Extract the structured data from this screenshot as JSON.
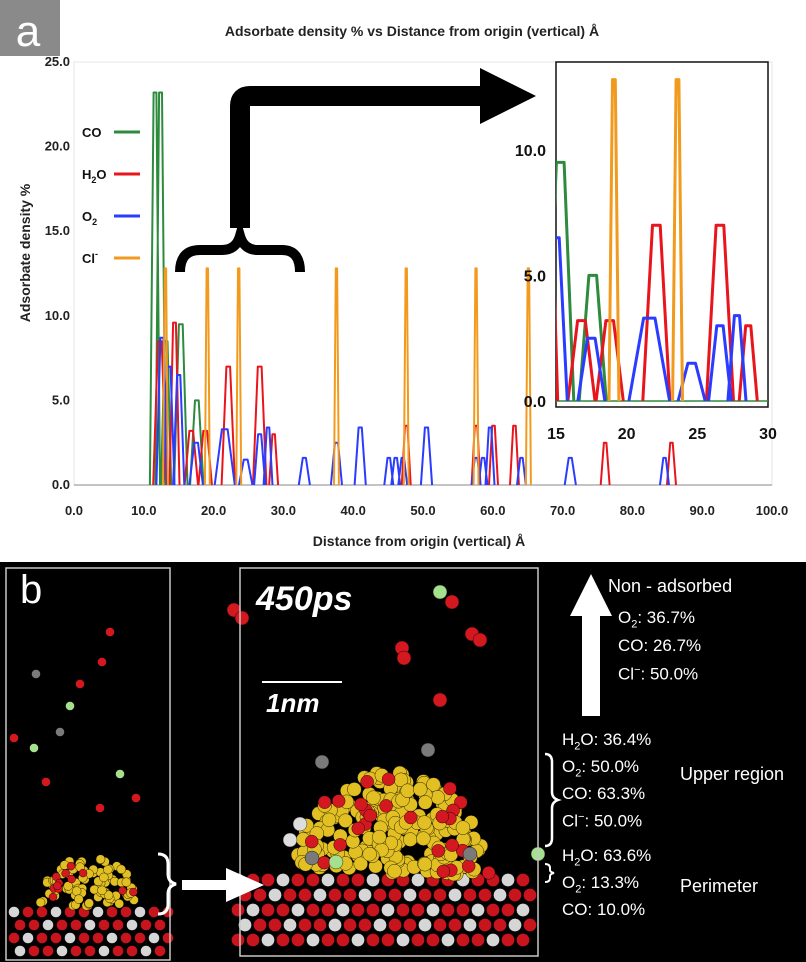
{
  "panel_a": {
    "letter": "a",
    "chart_data": {
      "type": "line",
      "title": "Adsorbate density % vs Distance from origin (vertical) Å",
      "xlabel": "Distance from origin (vertical) Å",
      "ylabel": "Adsorbate density %",
      "xlim": [
        0,
        100
      ],
      "ylim": [
        0,
        25
      ],
      "x_ticks": [
        "0.0",
        "10.0",
        "20.0",
        "30.0",
        "40.0",
        "50.0",
        "60.0",
        "70.0",
        "80.0",
        "90.0",
        "100.0"
      ],
      "y_ticks": [
        "0.0",
        "5.0",
        "10.0",
        "15.0",
        "20.0",
        "25.0"
      ],
      "legend_placement": "top-left",
      "colors": {
        "CO": "#2e8b3e",
        "H2O": "#e8151c",
        "O2": "#2a3cff",
        "Cl": "#f29a1e"
      },
      "series": [
        {
          "name_base": "CO",
          "color_key": "CO",
          "peaks": [
            [
              11.6,
              23.2,
              0.45
            ],
            [
              12.4,
              23.2,
              0.45
            ],
            [
              13.2,
              8.5,
              0.45
            ],
            [
              15.3,
              9.5,
              0.6
            ],
            [
              17.6,
              5.0,
              0.6
            ]
          ]
        },
        {
          "name_base": "H",
          "name_sub": "2",
          "name_tail": "O",
          "color_key": "H2O",
          "peaks": [
            [
              12.3,
              8.5,
              0.6
            ],
            [
              14.4,
              9.6,
              0.45
            ],
            [
              16.8,
              3.2,
              0.6
            ],
            [
              18.8,
              3.2,
              0.6
            ],
            [
              22.1,
              7.0,
              0.6
            ],
            [
              26.6,
              7.0,
              0.6
            ],
            [
              28.6,
              3.0,
              0.4
            ],
            [
              47.6,
              3.5,
              0.4
            ],
            [
              57.6,
              3.5,
              0.4
            ],
            [
              60.1,
              3.5,
              0.4
            ],
            [
              63.1,
              3.5,
              0.4
            ],
            [
              76.1,
              2.5,
              0.4
            ],
            [
              85.6,
              2.5,
              0.4
            ]
          ]
        },
        {
          "name_base": "O",
          "name_sub": "2",
          "color_key": "O2",
          "peaks": [
            [
              12.6,
              8.7,
              0.5
            ],
            [
              13.6,
              7.0,
              0.5
            ],
            [
              15.0,
              6.5,
              0.5
            ],
            [
              17.5,
              2.5,
              0.6
            ],
            [
              21.6,
              3.3,
              0.9
            ],
            [
              24.6,
              1.5,
              0.6
            ],
            [
              26.6,
              3.0,
              0.5
            ],
            [
              27.8,
              3.4,
              0.4
            ],
            [
              33.0,
              1.6,
              0.5
            ],
            [
              37.6,
              2.5,
              0.5
            ],
            [
              41.0,
              3.4,
              0.5
            ],
            [
              45.1,
              1.6,
              0.4
            ],
            [
              46.1,
              1.6,
              0.4
            ],
            [
              47.1,
              1.6,
              0.4
            ],
            [
              50.5,
              3.4,
              0.5
            ],
            [
              57.6,
              1.6,
              0.4
            ],
            [
              58.6,
              1.6,
              0.4
            ],
            [
              59.6,
              3.4,
              0.4
            ],
            [
              64.1,
              1.6,
              0.4
            ],
            [
              71.1,
              1.6,
              0.5
            ],
            [
              84.6,
              1.6,
              0.4
            ]
          ]
        },
        {
          "name_base": "Cl",
          "name_sup": "-",
          "color_key": "Cl",
          "peaks": [
            [
              13.1,
              12.8,
              0.22
            ],
            [
              19.1,
              12.8,
              0.22
            ],
            [
              23.6,
              12.8,
              0.22
            ],
            [
              37.6,
              12.8,
              0.22
            ],
            [
              47.6,
              12.8,
              0.22
            ],
            [
              57.6,
              12.8,
              0.22
            ],
            [
              65.1,
              12.8,
              0.22
            ]
          ]
        }
      ],
      "inset": {
        "xlim": [
          15,
          30
        ],
        "ylim": [
          0,
          13.5
        ],
        "x_ticks": [
          "15",
          "20",
          "25",
          "30"
        ],
        "y_ticks": [
          "0.0",
          "5.0",
          "10.0"
        ]
      }
    }
  },
  "panel_b": {
    "letter": "b",
    "time_label": "450ps",
    "scale_label": "1nm",
    "non_adsorbed": {
      "title": "Non - adsorbed",
      "lines": [
        {
          "base": "O",
          "sub": "2",
          "text": ": 36.7%"
        },
        {
          "base": "CO",
          "text": ": 26.7%"
        },
        {
          "base": "Cl",
          "sup": "−",
          "text": ": 50.0%"
        }
      ]
    },
    "upper_region": {
      "label": "Upper region",
      "lines": [
        {
          "base": "H",
          "sub": "2",
          "text": "O: 36.4%"
        },
        {
          "base": "O",
          "sub": "2",
          "text": ": 50.0%"
        },
        {
          "base": "CO",
          "text": ": 63.3%"
        },
        {
          "base": "Cl",
          "sup": "−",
          "text": ": 50.0%"
        }
      ]
    },
    "perimeter": {
      "label": "Perimeter",
      "lines": [
        {
          "base": "H",
          "sub": "2",
          "text": "O: 63.6%"
        },
        {
          "base": "O",
          "sub": "2",
          "text": ": 13.3%"
        },
        {
          "base": "CO",
          "text": ": 10.0%"
        }
      ]
    }
  }
}
